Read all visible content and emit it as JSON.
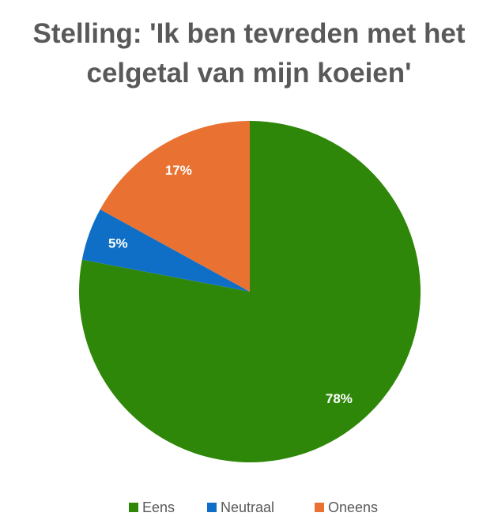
{
  "chart_data": {
    "type": "pie",
    "title": "Stelling: 'Ik ben tevreden met het celgetal van mijn koeien'",
    "categories": [
      "Eens",
      "Neutraal",
      "Oneens"
    ],
    "values": [
      78,
      5,
      17
    ],
    "value_labels": [
      "78%",
      "5%",
      "17%"
    ],
    "colors": [
      "#2e8708",
      "#0f6fc6",
      "#e97132"
    ]
  }
}
